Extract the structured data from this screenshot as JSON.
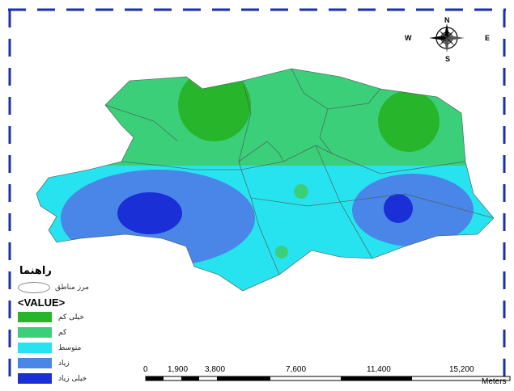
{
  "map": {
    "legend_title": "راهنما",
    "boundary_label": "مرز مناطق",
    "value_heading": "<VALUE>",
    "classes": [
      {
        "label": "خیلی کم",
        "color": "#27b52c"
      },
      {
        "label": "کم",
        "color": "#3ccf7a"
      },
      {
        "label": "متوسط",
        "color": "#27e3ef"
      },
      {
        "label": "زیاد",
        "color": "#4a86e8"
      },
      {
        "label": "خیلی زیاد",
        "color": "#1a2fd6"
      }
    ],
    "scale_labels": [
      "0",
      "1,900",
      "3,800",
      "7,600",
      "11,400",
      "15,200"
    ],
    "scale_unit": "Meters",
    "compass": {
      "n": "N",
      "s": "S",
      "e": "E",
      "w": "W"
    }
  }
}
